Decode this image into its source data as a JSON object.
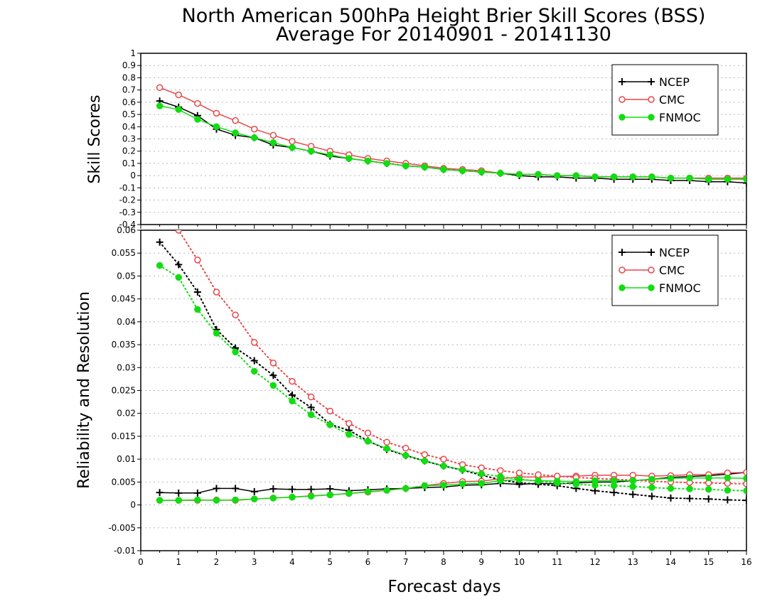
{
  "title": {
    "line1": "North American 500hPa Height Brier Skill Scores (BSS)",
    "line2": "Average For 20140901 - 20141130"
  },
  "xlabel": "Forecast days",
  "colors": {
    "NCEP": "#000000",
    "CMC": "#e8474a",
    "FNMOC": "#11dd11"
  },
  "chart_data": [
    {
      "type": "line",
      "ylabel": "Skill Scores",
      "xlim": [
        0,
        16
      ],
      "ylim": [
        -0.4,
        1
      ],
      "x_ticks": [
        0,
        1,
        2,
        3,
        4,
        5,
        6,
        7,
        8,
        9,
        10,
        11,
        12,
        13,
        14,
        15,
        16
      ],
      "y_ticks": [
        -0.4,
        -0.3,
        -0.2,
        -0.1,
        0,
        0.1,
        0.2,
        0.3,
        0.4,
        0.5,
        0.6,
        0.7,
        0.8,
        0.9,
        1
      ],
      "y_tick_labels": [
        "-0.4",
        "-0.3",
        "-0.2",
        "-0.1",
        "0",
        "0.1",
        "0.2",
        "0.3",
        "0.4",
        "0.5",
        "0.6",
        "0.7",
        "0.8",
        "0.9",
        "1"
      ],
      "grid": true,
      "legend": {
        "placement": "top-right",
        "entries": [
          "NCEP",
          "CMC",
          "FNMOC"
        ]
      },
      "x": [
        0.5,
        1,
        1.5,
        2,
        2.5,
        3,
        3.5,
        4,
        4.5,
        5,
        5.5,
        6,
        6.5,
        7,
        7.5,
        8,
        8.5,
        9,
        9.5,
        10,
        10.5,
        11,
        11.5,
        12,
        12.5,
        13,
        13.5,
        14,
        14.5,
        15,
        15.5,
        16
      ],
      "series": [
        {
          "name": "NCEP",
          "marker": "plus",
          "style": "solid",
          "values": [
            0.61,
            0.56,
            0.49,
            0.38,
            0.33,
            0.31,
            0.25,
            0.23,
            0.2,
            0.16,
            0.14,
            0.12,
            0.1,
            0.08,
            0.07,
            0.05,
            0.04,
            0.03,
            0.02,
            0.0,
            -0.01,
            -0.01,
            -0.02,
            -0.02,
            -0.03,
            -0.03,
            -0.03,
            -0.04,
            -0.04,
            -0.05,
            -0.05,
            -0.06
          ]
        },
        {
          "name": "CMC",
          "marker": "open-circle",
          "style": "solid",
          "values": [
            0.72,
            0.66,
            0.59,
            0.51,
            0.45,
            0.38,
            0.33,
            0.28,
            0.24,
            0.2,
            0.17,
            0.14,
            0.12,
            0.1,
            0.08,
            0.06,
            0.05,
            0.04,
            0.02,
            0.01,
            0.01,
            0.0,
            0.0,
            -0.01,
            -0.01,
            -0.01,
            -0.01,
            -0.02,
            -0.02,
            -0.02,
            -0.02,
            -0.02
          ]
        },
        {
          "name": "FNMOC",
          "marker": "filled-circle",
          "style": "solid",
          "values": [
            0.57,
            0.54,
            0.46,
            0.4,
            0.35,
            0.31,
            0.27,
            0.23,
            0.2,
            0.17,
            0.14,
            0.12,
            0.1,
            0.08,
            0.07,
            0.05,
            0.04,
            0.03,
            0.02,
            0.01,
            0.01,
            0.0,
            0.0,
            -0.01,
            -0.01,
            -0.01,
            -0.01,
            -0.02,
            -0.02,
            -0.03,
            -0.03,
            -0.03
          ]
        }
      ]
    },
    {
      "type": "line",
      "ylabel": "Reliability and Resolution",
      "xlim": [
        0,
        16
      ],
      "ylim": [
        -0.01,
        0.06
      ],
      "x_ticks": [
        0,
        1,
        2,
        3,
        4,
        5,
        6,
        7,
        8,
        9,
        10,
        11,
        12,
        13,
        14,
        15,
        16
      ],
      "y_ticks": [
        -0.01,
        -0.005,
        0,
        0.005,
        0.01,
        0.015,
        0.02,
        0.025,
        0.03,
        0.035,
        0.04,
        0.045,
        0.05,
        0.055,
        0.06
      ],
      "y_tick_labels": [
        "-0.01",
        "-0.005",
        "0",
        "0.005",
        "0.01",
        "0.015",
        "0.02",
        "0.025",
        "0.03",
        "0.035",
        "0.04",
        "0.045",
        "0.05",
        "0.055",
        "0.06"
      ],
      "grid": true,
      "legend": {
        "placement": "top-right",
        "entries": [
          "NCEP",
          "CMC",
          "FNMOC"
        ]
      },
      "x": [
        0.5,
        1,
        1.5,
        2,
        2.5,
        3,
        3.5,
        4,
        4.5,
        5,
        5.5,
        6,
        6.5,
        7,
        7.5,
        8,
        8.5,
        9,
        9.5,
        10,
        10.5,
        11,
        11.5,
        12,
        12.5,
        13,
        13.5,
        14,
        14.5,
        15,
        15.5,
        16
      ],
      "series": [
        {
          "name": "NCEP",
          "marker": "plus",
          "style": "solid",
          "values": [
            0.0027,
            0.0026,
            0.0026,
            0.0036,
            0.0036,
            0.0029,
            0.0035,
            0.0034,
            0.0034,
            0.0035,
            0.0031,
            0.0033,
            0.0035,
            0.0036,
            0.0038,
            0.0039,
            0.0043,
            0.0044,
            0.0047,
            0.0045,
            0.0047,
            0.0046,
            0.0048,
            0.005,
            0.005,
            0.0053,
            0.0056,
            0.006,
            0.0062,
            0.0064,
            0.0067,
            0.0071
          ]
        },
        {
          "name": "NCEP",
          "marker": "plus",
          "style": "dotted",
          "values": [
            0.0574,
            0.0525,
            0.0465,
            0.0383,
            0.0343,
            0.0315,
            0.0283,
            0.024,
            0.0213,
            0.0176,
            0.0163,
            0.014,
            0.0121,
            0.0108,
            0.0096,
            0.0085,
            0.0076,
            0.0065,
            0.0055,
            0.0048,
            0.0045,
            0.0042,
            0.0036,
            0.0031,
            0.0027,
            0.0023,
            0.0019,
            0.0015,
            0.0014,
            0.0013,
            0.0011,
            0.001
          ]
        },
        {
          "name": "CMC",
          "marker": "open-circle",
          "style": "solid",
          "values": [
            0.001,
            0.001,
            0.001,
            0.0011,
            0.001,
            0.0013,
            0.0015,
            0.0017,
            0.002,
            0.0022,
            0.0025,
            0.0028,
            0.0032,
            0.0036,
            0.0042,
            0.0047,
            0.0051,
            0.0052,
            0.0057,
            0.0061,
            0.0061,
            0.0062,
            0.0063,
            0.0065,
            0.0065,
            0.0065,
            0.0063,
            0.0064,
            0.0066,
            0.0066,
            0.007,
            0.0071
          ]
        },
        {
          "name": "CMC",
          "marker": "open-circle",
          "style": "dotted",
          "values": [
            0.062,
            0.06,
            0.0535,
            0.0465,
            0.0415,
            0.0355,
            0.031,
            0.027,
            0.0236,
            0.0205,
            0.0178,
            0.0157,
            0.0137,
            0.0124,
            0.011,
            0.01,
            0.0088,
            0.0081,
            0.0075,
            0.007,
            0.0066,
            0.0063,
            0.006,
            0.0058,
            0.0056,
            0.0054,
            0.0052,
            0.005,
            0.0049,
            0.0048,
            0.0047,
            0.0046
          ]
        },
        {
          "name": "FNMOC",
          "marker": "filled-circle",
          "style": "solid",
          "values": [
            0.001,
            0.001,
            0.0011,
            0.001,
            0.0011,
            0.0013,
            0.0015,
            0.0017,
            0.0019,
            0.0022,
            0.0025,
            0.0029,
            0.0032,
            0.0036,
            0.0042,
            0.0043,
            0.0046,
            0.0047,
            0.0053,
            0.0055,
            0.0053,
            0.0052,
            0.0051,
            0.0053,
            0.0053,
            0.0053,
            0.0056,
            0.0058,
            0.0059,
            0.0059,
            0.0059,
            0.0058
          ]
        },
        {
          "name": "FNMOC",
          "marker": "filled-circle",
          "style": "dotted",
          "values": [
            0.0523,
            0.0497,
            0.0427,
            0.0375,
            0.0334,
            0.0292,
            0.0261,
            0.0227,
            0.0197,
            0.0175,
            0.0154,
            0.0139,
            0.0123,
            0.0108,
            0.0096,
            0.0085,
            0.0077,
            0.0068,
            0.0062,
            0.0056,
            0.0052,
            0.0048,
            0.0045,
            0.0043,
            0.0042,
            0.004,
            0.0038,
            0.0036,
            0.0035,
            0.0034,
            0.0032,
            0.0031
          ]
        }
      ]
    }
  ]
}
